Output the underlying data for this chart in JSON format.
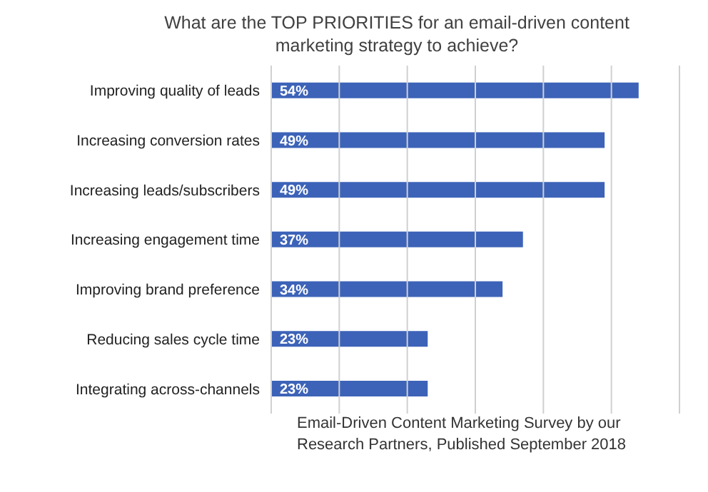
{
  "chart_data": {
    "type": "bar",
    "orientation": "horizontal",
    "title": "What are the TOP PRIORITIES for an email-driven content marketing strategy to achieve?",
    "categories": [
      "Improving quality of leads",
      "Increasing conversion rates",
      "Increasing leads/subscribers",
      "Increasing engagement time",
      "Improving brand preference",
      "Reducing sales cycle time",
      "Integrating across-channels"
    ],
    "values": [
      54,
      49,
      49,
      37,
      34,
      23,
      23
    ],
    "value_labels": [
      "54%",
      "49%",
      "49%",
      "37%",
      "34%",
      "23%",
      "23%"
    ],
    "color": "#3d63b8",
    "xlim": [
      0,
      60
    ],
    "xticks": [
      {
        "value": 0,
        "label": null
      },
      {
        "value": 10,
        "label": null
      },
      {
        "value": 20,
        "label": null
      },
      {
        "value": 30,
        "label": null
      },
      {
        "value": 40,
        "label": null
      },
      {
        "value": 50,
        "label": null
      },
      {
        "value": 60,
        "label": null
      }
    ],
    "tick_labels": "y",
    "grid": "x",
    "annotations": [
      "Email-Driven Content Marketing Survey by our Research Partners, Published September 2018"
    ]
  }
}
